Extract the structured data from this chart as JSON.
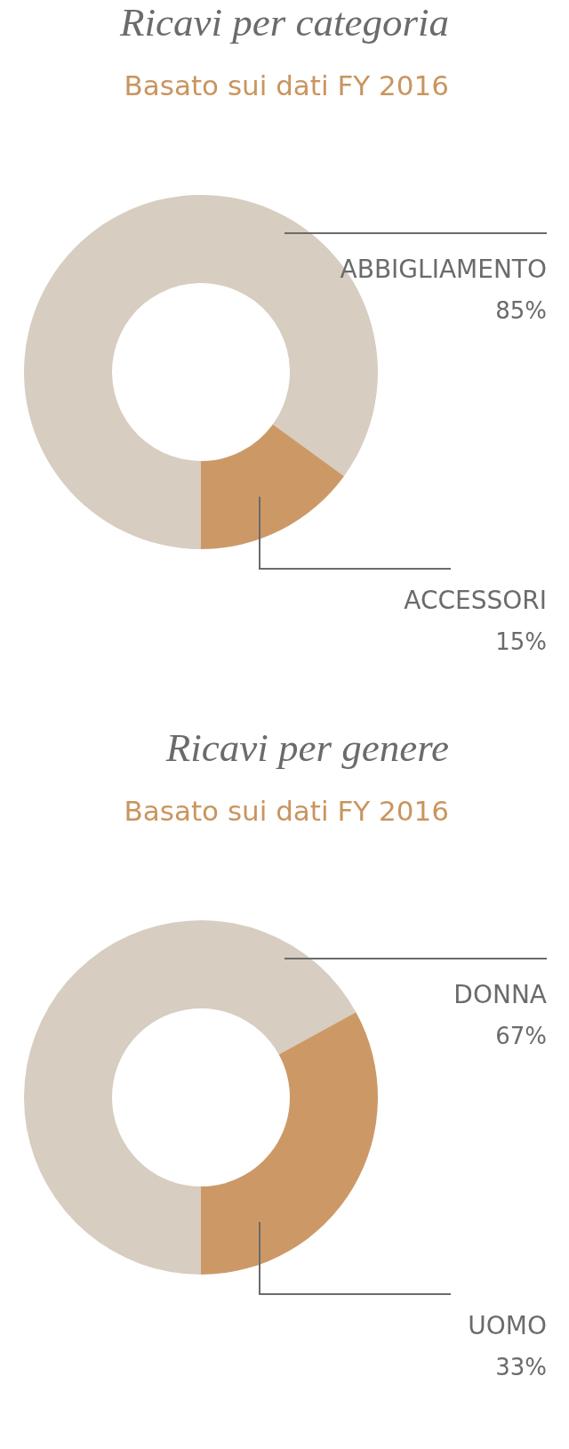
{
  "chart_data": [
    {
      "type": "donut",
      "title": "Ricavi per categoria",
      "subtitle": "Basato sui dati FY 2016",
      "categories": [
        "ABBIGLIAMENTO",
        "ACCESSORI"
      ],
      "values": [
        85,
        15
      ],
      "value_labels": [
        "85%",
        "15%"
      ],
      "colors": [
        "#d7cdc0",
        "#cc9966"
      ]
    },
    {
      "type": "donut",
      "title": "Ricavi per genere",
      "subtitle": "Basato sui dati FY 2016",
      "categories": [
        "DONNA",
        "UOMO"
      ],
      "values": [
        67,
        33
      ],
      "value_labels": [
        "67%",
        "33%"
      ],
      "colors": [
        "#d7cdc0",
        "#cc9966"
      ]
    }
  ]
}
